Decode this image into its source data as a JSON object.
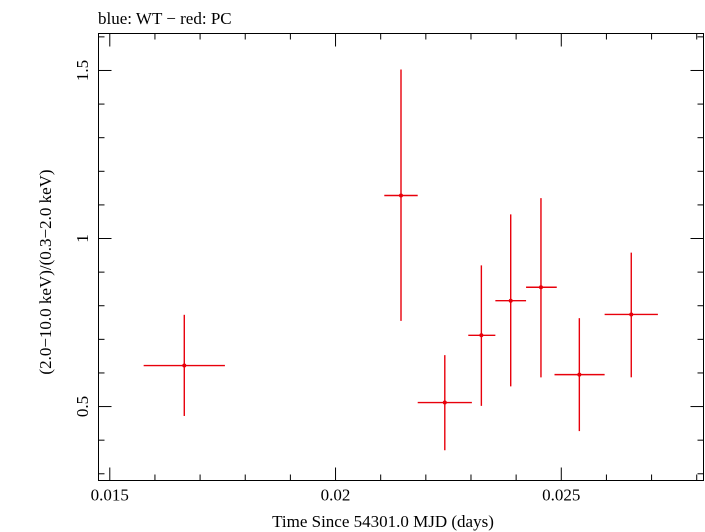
{
  "chart_data": {
    "type": "scatter",
    "title": "blue: WT − red: PC",
    "xlabel": "Time Since 54301.0 MJD (days)",
    "ylabel": "(2.0−10.0 keV)/(0.3−2.0 keV)",
    "xlim": [
      0.01475,
      0.02815
    ],
    "ylim": [
      0.28,
      1.61
    ],
    "x_ticks": [
      0.015,
      0.02,
      0.025
    ],
    "x_tick_labels": [
      "0.015",
      "0.02",
      "0.025"
    ],
    "y_ticks": [
      0.5,
      1,
      1.5
    ],
    "y_tick_labels": [
      "0.5",
      "1",
      "1.5"
    ],
    "grid": false,
    "series": [
      {
        "color": "#e8000b",
        "points": [
          {
            "x": 0.01665,
            "xlo": 0.01575,
            "xhi": 0.01755,
            "y": 0.622,
            "ylo": 0.472,
            "yhi": 0.773
          },
          {
            "x": 0.02145,
            "xlo": 0.02108,
            "xhi": 0.02182,
            "y": 1.128,
            "ylo": 0.755,
            "yhi": 1.503
          },
          {
            "x": 0.02242,
            "xlo": 0.02182,
            "xhi": 0.02302,
            "y": 0.512,
            "ylo": 0.37,
            "yhi": 0.653
          },
          {
            "x": 0.02323,
            "xlo": 0.02294,
            "xhi": 0.02354,
            "y": 0.712,
            "ylo": 0.502,
            "yhi": 0.92
          },
          {
            "x": 0.02388,
            "xlo": 0.02354,
            "xhi": 0.02422,
            "y": 0.815,
            "ylo": 0.56,
            "yhi": 1.072
          },
          {
            "x": 0.02455,
            "xlo": 0.02422,
            "xhi": 0.0249,
            "y": 0.855,
            "ylo": 0.587,
            "yhi": 1.12
          },
          {
            "x": 0.0254,
            "xlo": 0.02485,
            "xhi": 0.02596,
            "y": 0.595,
            "ylo": 0.427,
            "yhi": 0.763
          },
          {
            "x": 0.02655,
            "xlo": 0.02596,
            "xhi": 0.02714,
            "y": 0.774,
            "ylo": 0.587,
            "yhi": 0.958
          }
        ]
      }
    ]
  }
}
